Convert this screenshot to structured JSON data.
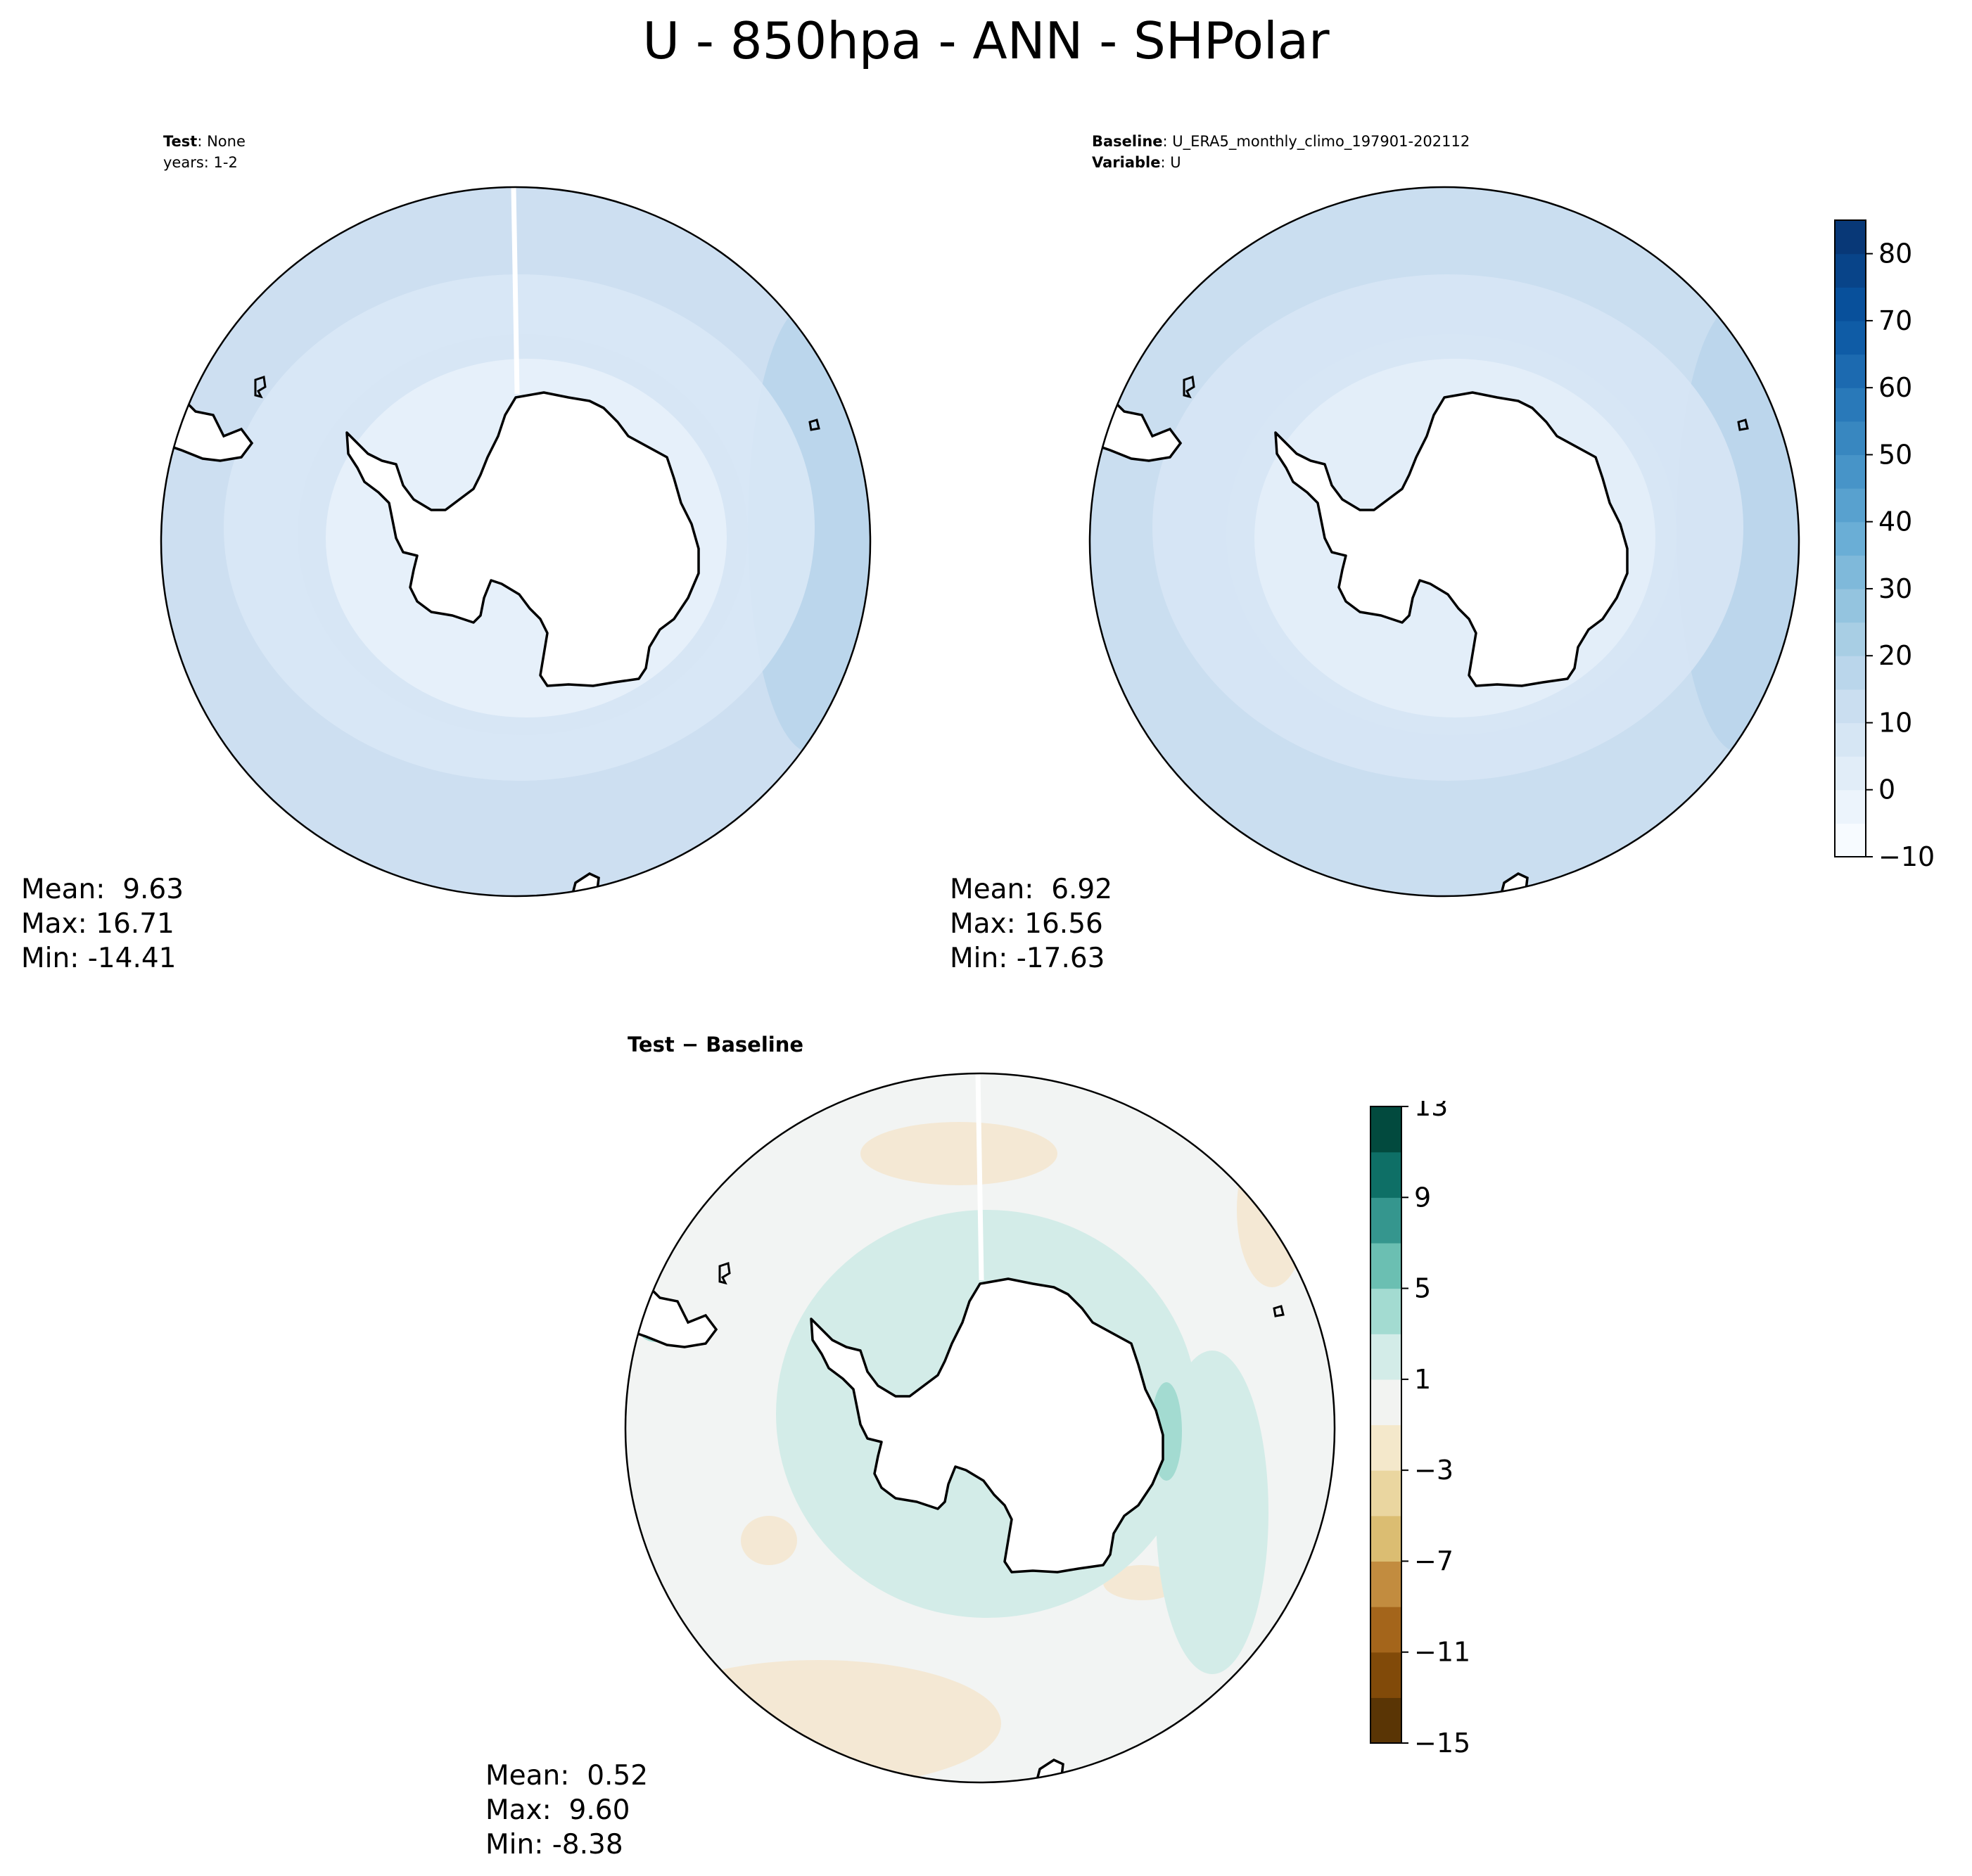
{
  "figure": {
    "title": "U - 850hpa - ANN - SHPolar"
  },
  "panels": {
    "test": {
      "header_key": "Test",
      "header_value": "None",
      "header_line2": "years: 1-2",
      "mean": "Mean:  9.63",
      "max": "Max: 16.71",
      "min": "Min: -14.41"
    },
    "baseline": {
      "header_key": "Baseline",
      "header_value": "U_ERA5_monthly_climo_197901-202112",
      "header_key2": "Variable",
      "header_value2": "U",
      "mean": "Mean:  6.92",
      "max": "Max: 16.56",
      "min": "Min: -17.63"
    },
    "diff": {
      "title": "Test − Baseline",
      "mean": "Mean:  0.52",
      "max": "Max:  9.60",
      "min": "Min: -8.38"
    }
  },
  "colorbars": {
    "main": {
      "ticks": [
        "80",
        "70",
        "60",
        "50",
        "40",
        "30",
        "20",
        "10",
        "0",
        "−10"
      ],
      "range": [
        -10,
        85
      ],
      "levels": [
        -10,
        -5,
        0,
        5,
        10,
        15,
        20,
        25,
        30,
        35,
        40,
        45,
        50,
        55,
        60,
        65,
        70,
        75,
        80,
        85
      ],
      "colors": [
        "#f7fbff",
        "#ecf4fc",
        "#e1edf8",
        "#d6e6f4",
        "#cadef0",
        "#bad6eb",
        "#a8cee4",
        "#94c4df",
        "#7fb9da",
        "#6aaed6",
        "#58a1cf",
        "#4794c8",
        "#3887c0",
        "#2979b9",
        "#1c6ab0",
        "#0f5ca6",
        "#08509b",
        "#084489",
        "#083877"
      ]
    },
    "diff": {
      "ticks": [
        "13",
        "9",
        "5",
        "1",
        "−3",
        "−7",
        "−11",
        "−15"
      ],
      "range": [
        -15,
        13
      ],
      "levels": [
        -15,
        -13,
        -11,
        -9,
        -7,
        -5,
        -3,
        -1,
        1,
        3,
        5,
        7,
        9,
        11,
        13
      ],
      "colors": [
        "#5a3505",
        "#814a09",
        "#a4651b",
        "#c28c3f",
        "#dbbd72",
        "#ead6a0",
        "#f4e8cb",
        "#f2f3f1",
        "#d3ece8",
        "#a3dbd1",
        "#6bbfb2",
        "#35968e",
        "#0e6f66",
        "#024a3e"
      ]
    }
  },
  "map_colors": {
    "test_outer": "#cddff1",
    "test_mid": "#d9e8f6",
    "test_inner": "#e6f0fa",
    "test_band": "#bbd6ec",
    "base_outer": "#cadef0",
    "base_mid": "#d7e6f5",
    "base_inner": "#e3eef9",
    "base_band": "#bcd6ec",
    "diff_bg": "#f2f4f3",
    "diff_pos": "#d3ece8",
    "diff_pos_strong": "#a3dbd1",
    "diff_neg": "#f4e8d4",
    "land": "#ffffff",
    "coast": "#000000"
  }
}
